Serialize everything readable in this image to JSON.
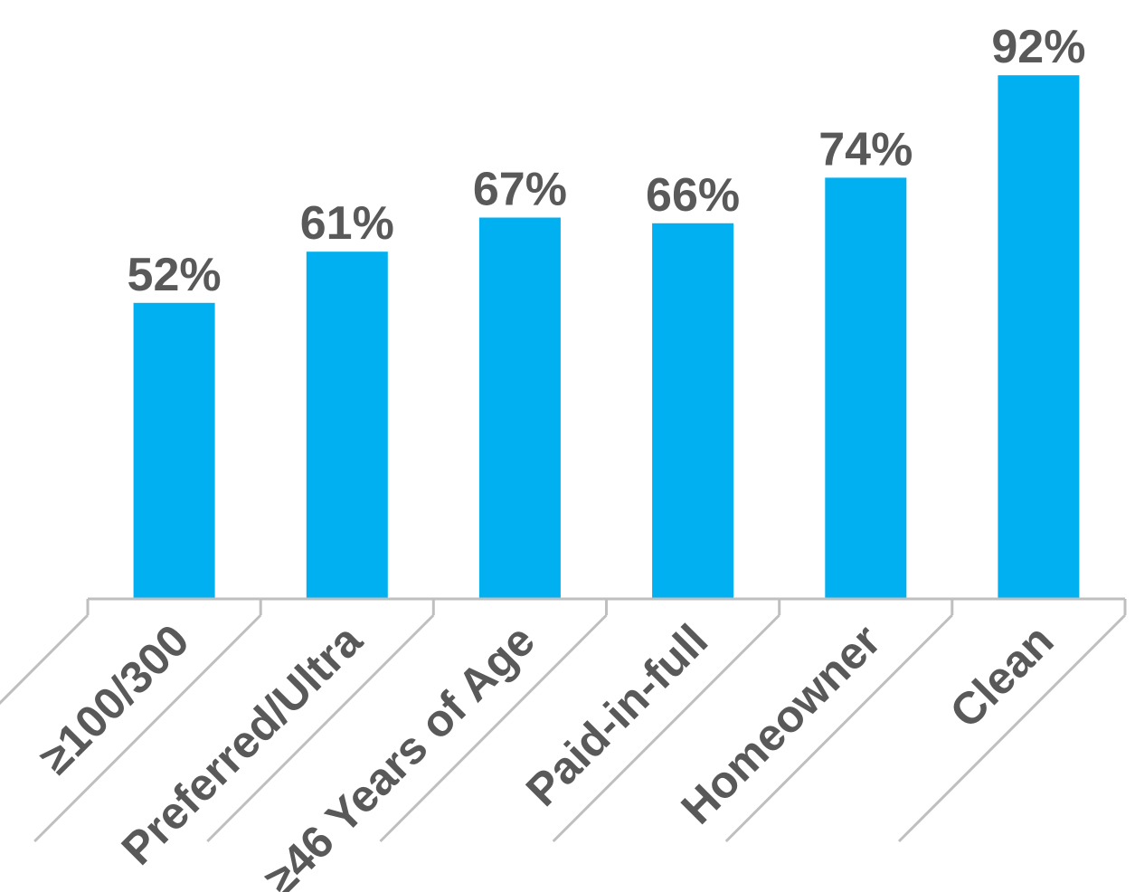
{
  "chart_data": {
    "type": "bar",
    "title": "",
    "xlabel": "",
    "ylabel": "",
    "categories": [
      "≥100/300",
      "Preferred/Ultra",
      "≥46 Years of Age",
      "Paid-in-full",
      "Homeowner",
      "Clean"
    ],
    "values": [
      52,
      61,
      67,
      66,
      74,
      92
    ],
    "data_labels": [
      "52%",
      "61%",
      "67%",
      "66%",
      "74%",
      "92%"
    ],
    "ylim": [
      0,
      100
    ],
    "grid": false,
    "legend": "none",
    "y_axis_visible": false,
    "colors": {
      "bar": "#00b0f0",
      "data_label": "#595959",
      "tick_label": "#595959",
      "axis": "#bfbfbf"
    }
  }
}
